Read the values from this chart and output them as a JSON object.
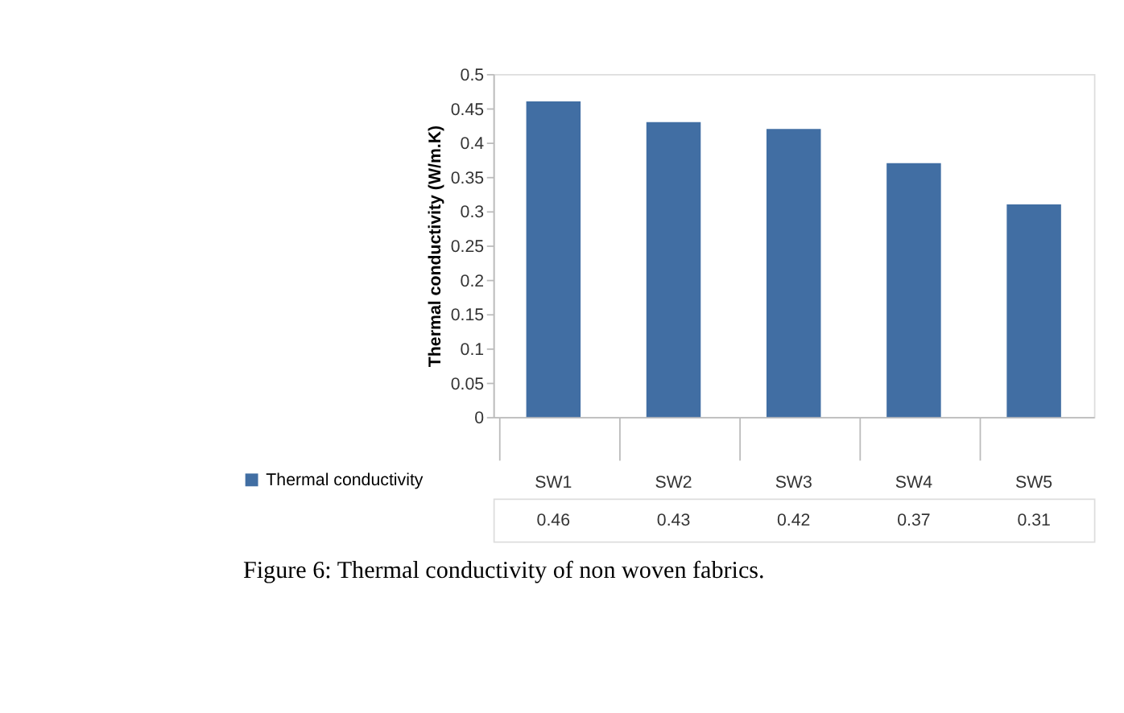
{
  "chart_data": {
    "type": "bar",
    "ylabel": "Thermal conductivity (W/m.K)",
    "categories": [
      "SW1",
      "SW2",
      "SW3",
      "SW4",
      "SW5"
    ],
    "series": [
      {
        "name": "Thermal conductivity",
        "color": "#416ea3",
        "values": [
          0.46,
          0.43,
          0.42,
          0.37,
          0.31
        ]
      }
    ],
    "ylim": [
      0,
      0.5
    ],
    "yticks": [
      0,
      0.05,
      0.1,
      0.15,
      0.2,
      0.25,
      0.3,
      0.35,
      0.4,
      0.45,
      0.5
    ],
    "grid": false,
    "data_labels": true,
    "legend": "bottom left",
    "annotations": [
      "Figure 6: Thermal conductivity of non woven fabrics."
    ]
  }
}
